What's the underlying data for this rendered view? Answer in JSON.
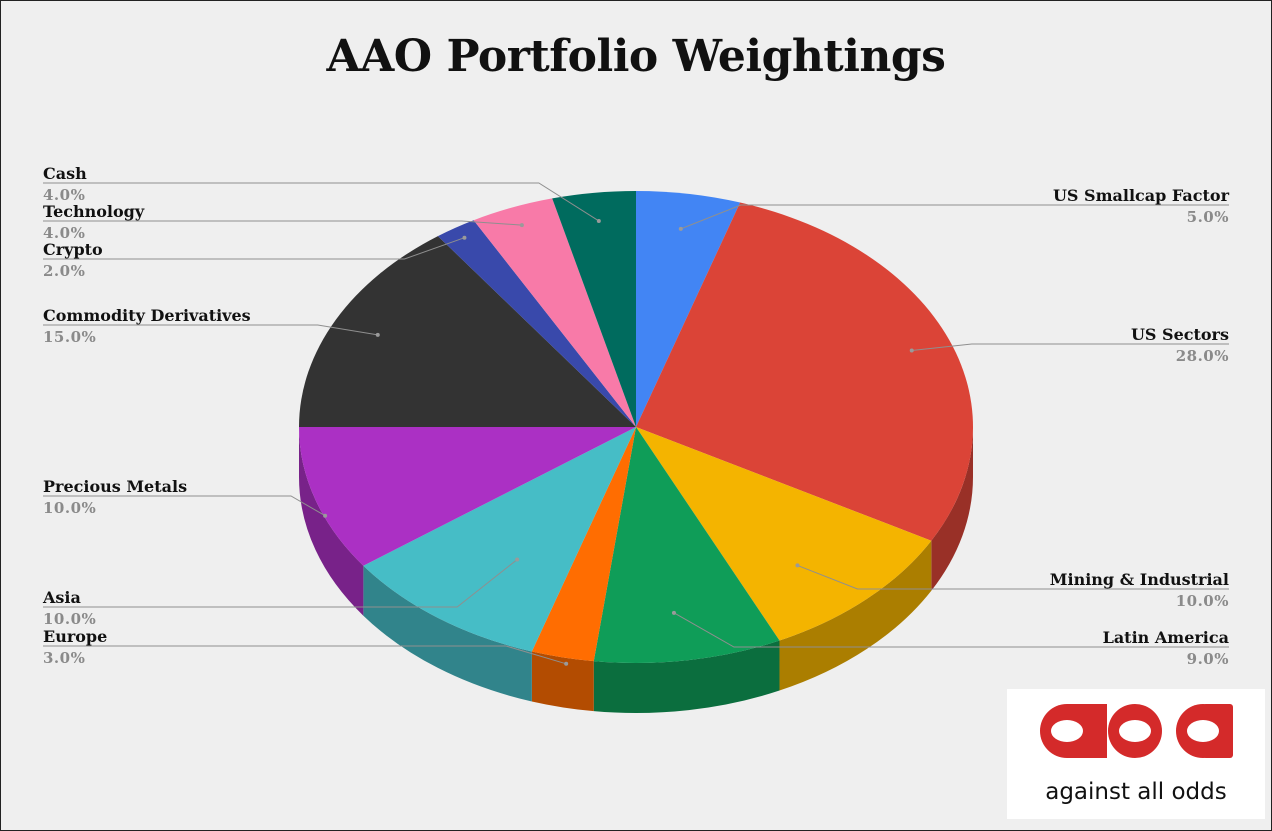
{
  "chart_data": {
    "type": "pie",
    "title": "AAO Portfolio Weightings",
    "three_d": true,
    "labels": [
      "US Smallcap Factor",
      "US Sectors",
      "Mining & Industrial",
      "Latin America",
      "Europe",
      "Asia",
      "Precious Metals",
      "Commodity Derivatives",
      "Crypto",
      "Technology",
      "Cash"
    ],
    "values": [
      5.0,
      28.0,
      10.0,
      9.0,
      3.0,
      10.0,
      10.0,
      15.0,
      2.0,
      4.0,
      4.0
    ],
    "value_labels": [
      "5.0%",
      "28.0%",
      "10.0%",
      "9.0%",
      "3.0%",
      "10.0%",
      "10.0%",
      "15.0%",
      "2.0%",
      "4.0%",
      "4.0%"
    ],
    "colors": [
      "#4285f4",
      "#db4437",
      "#f4b400",
      "#0f9d58",
      "#ff6d01",
      "#46bdc6",
      "#ab30c4",
      "#333333",
      "#3949ab",
      "#f87aa8",
      "#006b5e"
    ]
  },
  "logo": {
    "wordmark": "against all odds",
    "glyph_text": "aao",
    "color": "#d42a2a"
  }
}
